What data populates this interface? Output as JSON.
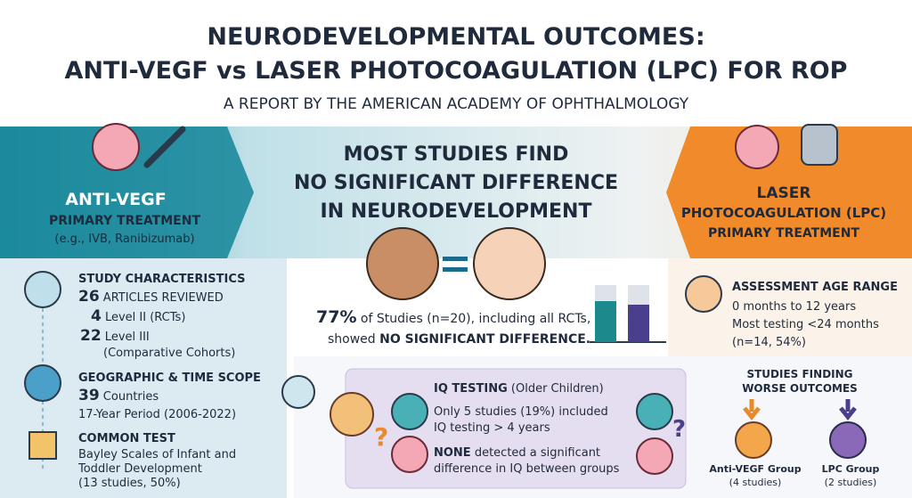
{
  "header": {
    "title_line1": "NEURODEVELOPMENTAL OUTCOMES:",
    "title_line2": "ANTI-VEGF vs LASER PHOTOCOAGULATION (LPC) FOR ROP",
    "subtitle": "A REPORT BY THE AMERICAN ACADEMY OF OPHTHALMOLOGY"
  },
  "anti_vegf": {
    "title": "ANTI-VEGF",
    "subtitle": "PRIMARY TREATMENT",
    "example": "(e.g., IVB, Ranibizumab)"
  },
  "headline": {
    "lines": [
      "MOST STUDIES FIND",
      "NO SIGNIFICANT DIFFERENCE",
      "IN NEURODEVELOPMENT"
    ]
  },
  "lpc": {
    "title_lines": [
      "LASER",
      "PHOTOCOAGULATION (LPC)"
    ],
    "subtitle": "PRIMARY TREATMENT"
  },
  "finding": {
    "percent": "77%",
    "text1": " of Studies (n=20), including all RCTs,",
    "text2": "showed ",
    "emphasis": "NO SIGNIFICANT DIFFERENCE."
  },
  "study_characteristics": {
    "heading": "STUDY CHARACTERISTICS",
    "items": [
      {
        "number": "26",
        "label": " ARTICLES REVIEWED"
      },
      {
        "number": "4",
        "label": " Level II (RCTs)"
      },
      {
        "number": "22",
        "label": " Level III",
        "note": "(Comparative Cohorts)"
      }
    ]
  },
  "geographic": {
    "heading": "GEOGRAPHIC & TIME SCOPE",
    "number": "39",
    "label": " Countries",
    "period": "17-Year Period (2006-2022)"
  },
  "common_test": {
    "heading": "COMMON TEST",
    "lines": [
      "Bayley Scales of Infant and",
      "Toddler Development",
      "(13 studies, 50%)"
    ]
  },
  "assessment": {
    "heading": "ASSESSMENT AGE RANGE",
    "lines": [
      "0 months to 12 years",
      "Most testing <24 months",
      "(n=14, 54%)"
    ]
  },
  "iq": {
    "heading": "IQ TESTING",
    "heading_note": " (Older Children)",
    "lines": [
      "Only 5 studies (19%) included",
      "IQ testing > 4 years"
    ],
    "emphasis": "NONE",
    "rest": " detected a significant",
    "last_line": "difference in IQ between groups",
    "symbol": "?"
  },
  "worse": {
    "heading_lines": [
      "STUDIES FINDING",
      "WORSE OUTCOMES"
    ],
    "groups": [
      {
        "label": "Anti-VEGF Group",
        "count": "(4 studies)"
      },
      {
        "label": "LPC Group",
        "count": "(2 studies)"
      }
    ]
  }
}
